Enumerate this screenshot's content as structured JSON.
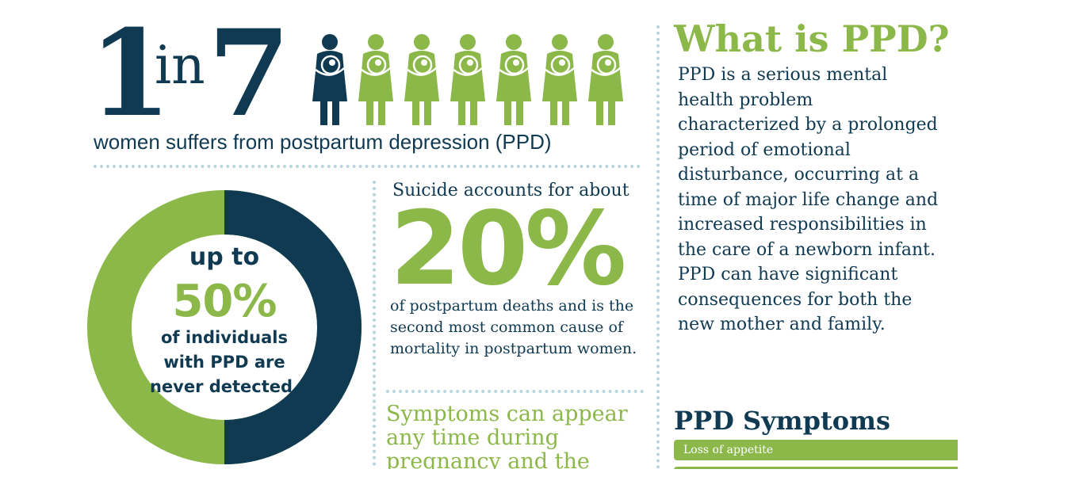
{
  "headline": {
    "number_one": "1",
    "word_in": "in",
    "number_seven": "7",
    "caption": "women suffers from postpartum depression (PPD)"
  },
  "figures": {
    "total": 7,
    "highlighted": 1,
    "highlight_color": "#0f3a52",
    "base_color": "#8cb84a",
    "icon": "mother-holding-baby-icon"
  },
  "detection": {
    "line1": "up to",
    "percent": "50%",
    "line2": "of individuals",
    "line3": "with PPD are",
    "line4": "never detected.",
    "ring_fraction": 0.5,
    "ring_colors": {
      "detected": "#0f3a52",
      "undetected": "#8cb84a"
    }
  },
  "suicide": {
    "intro": "Suicide accounts for about",
    "percent": "20%",
    "body": "of postpartum deaths and is the second most common cause of mortality in postpartum women."
  },
  "symptoms_timing": {
    "text": "Symptoms can appear any time during pregnancy and the"
  },
  "what_is": {
    "title": "What is PPD?",
    "definition": "PPD is a serious mental health problem characterized by a prolonged period of emotional disturbance, occurring at a time of major life change and increased responsibilities in the care of a newborn infant. PPD can have significant consequences for both the new mother and family."
  },
  "symptoms": {
    "heading": "PPD Symptoms",
    "items": [
      "Loss of appetite",
      ""
    ]
  },
  "colors": {
    "navy": "#0f3a52",
    "green": "#8cb84a",
    "dots": "#b8d4dc"
  }
}
